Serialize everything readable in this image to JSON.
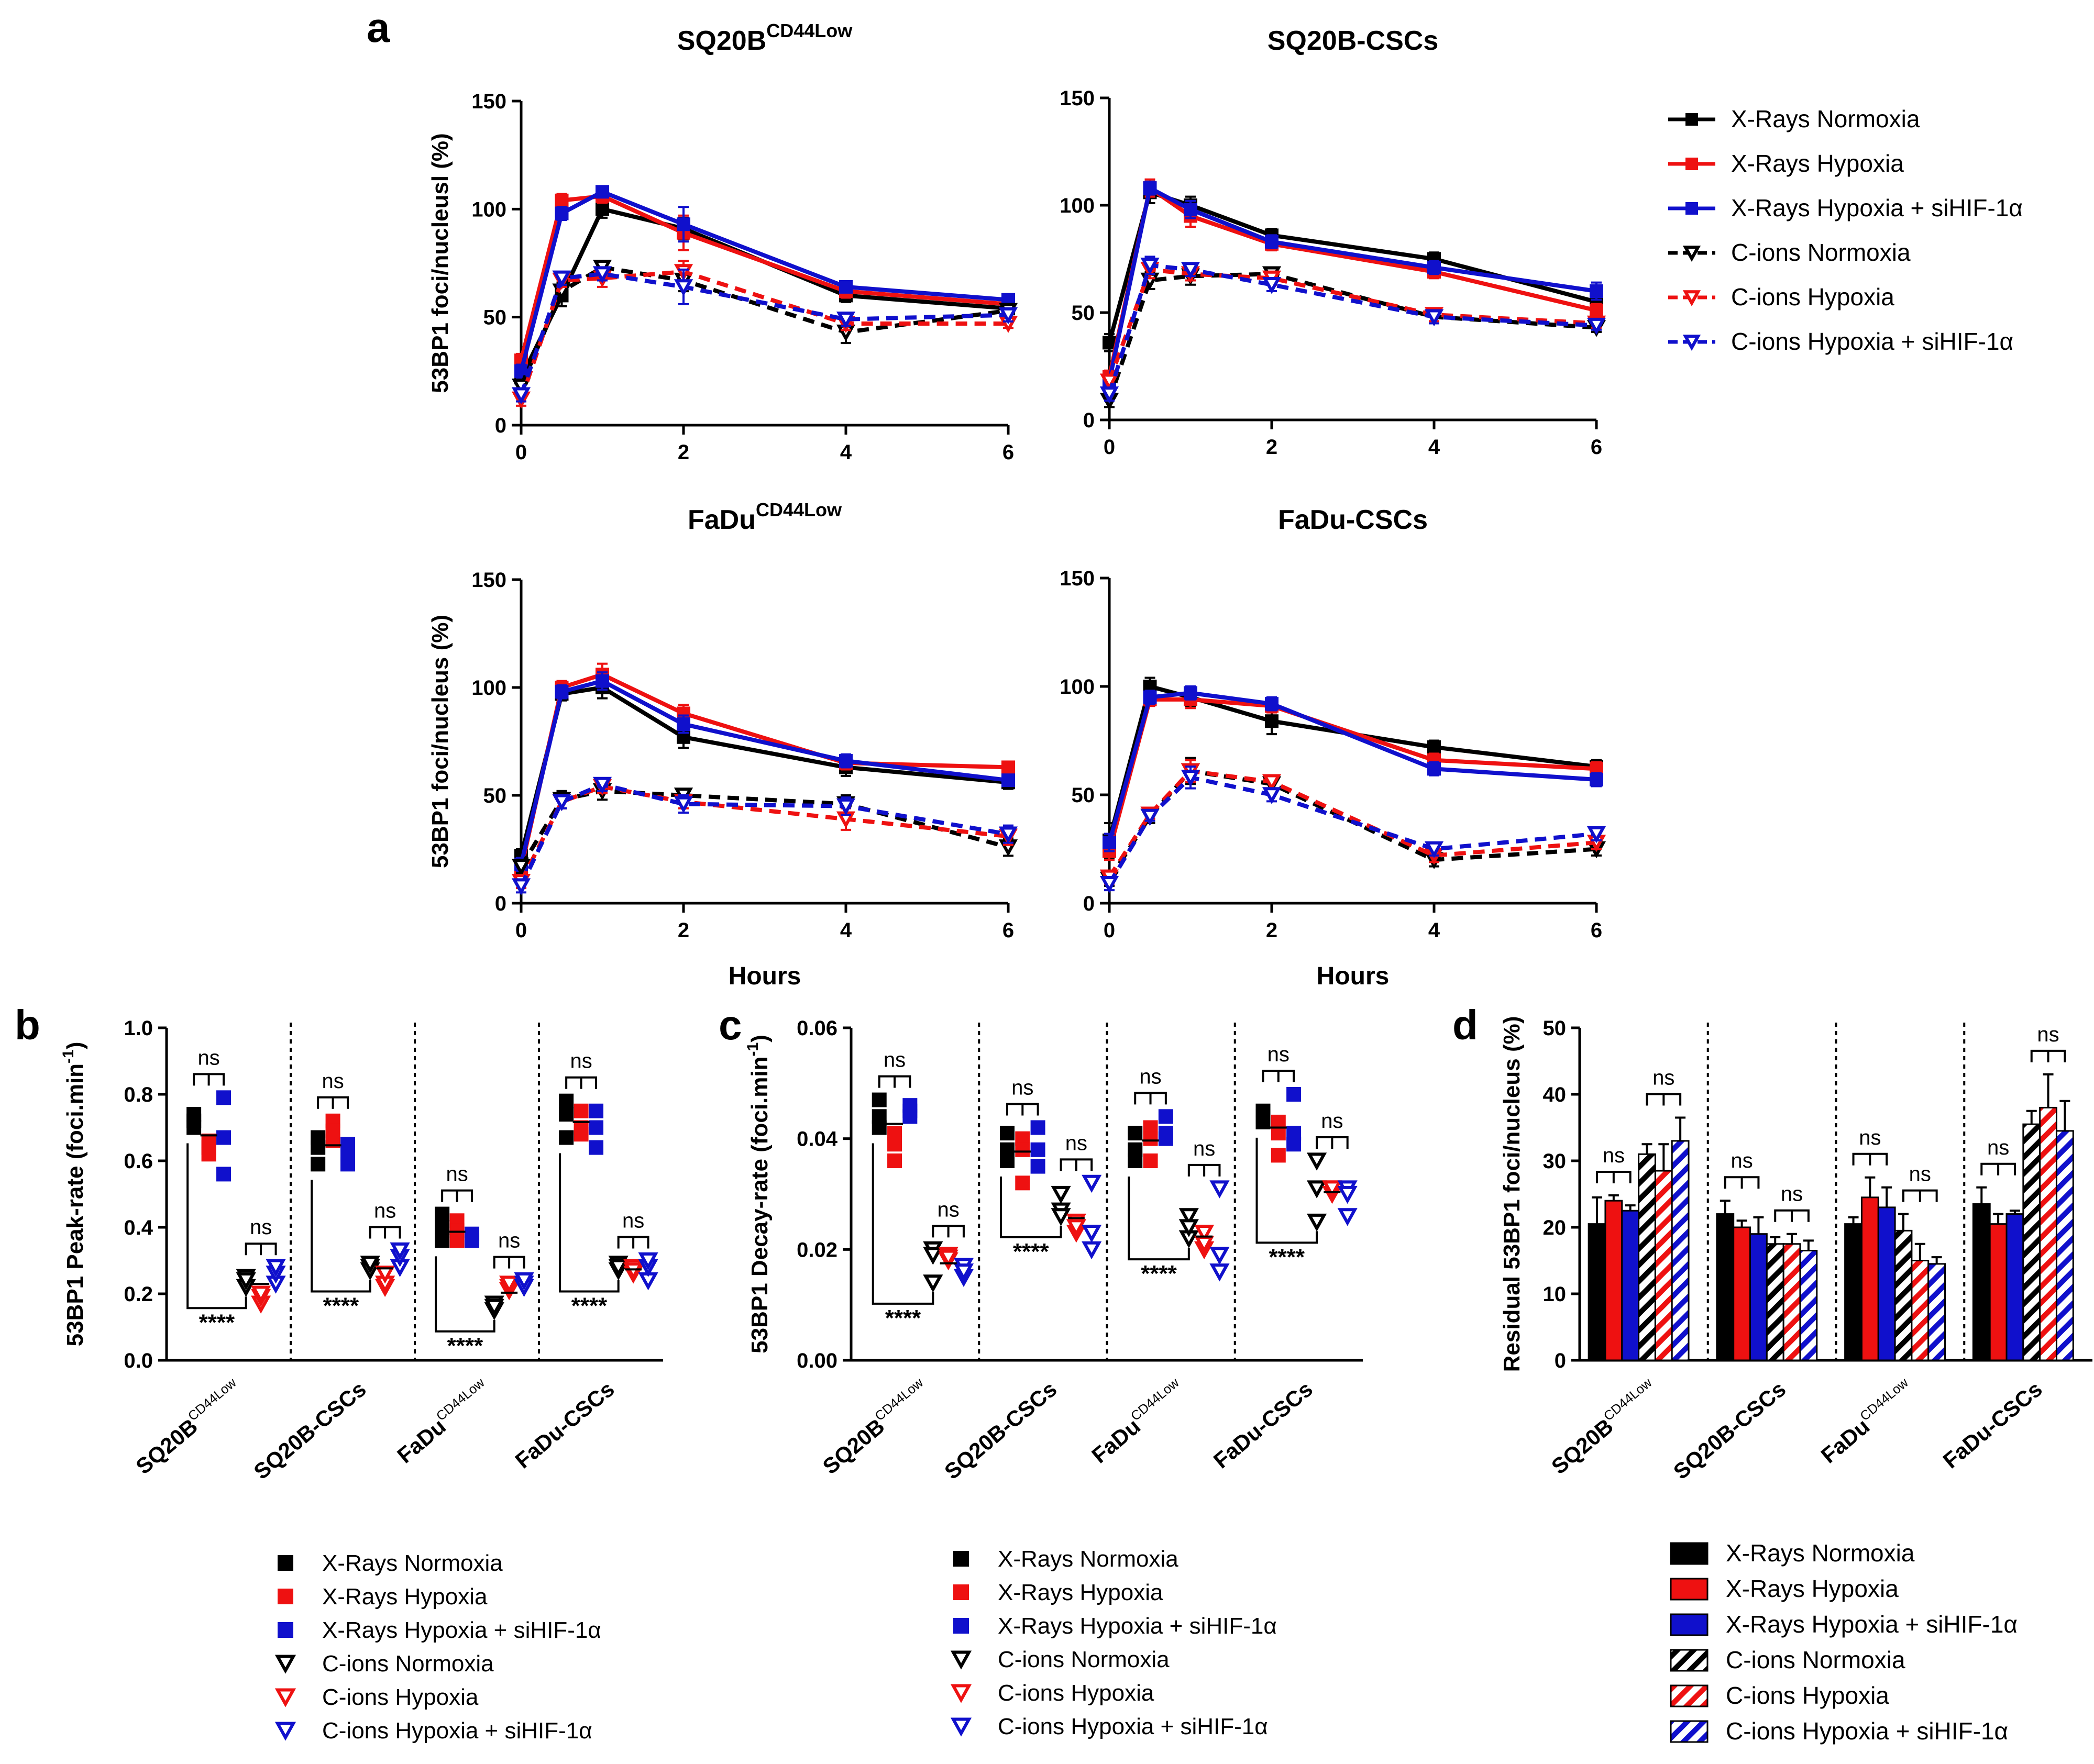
{
  "colors": {
    "xn": "#000000",
    "xh": "#ee1111",
    "xs": "#1010cc",
    "cn": "#000000",
    "ch": "#ee1111",
    "cs": "#1010cc"
  },
  "series_names": [
    "X-Rays Normoxia",
    "X-Rays Hypoxia",
    "X-Rays Hypoxia + siHIF-1α",
    "C-ions Normoxia",
    "C-ions Hypoxia",
    "C-ions Hypoxia + siHIF-1α"
  ],
  "panel_letters": {
    "a": "a",
    "b": "b",
    "c": "c",
    "d": "d"
  },
  "chart_data": [
    {
      "id": "a1",
      "type": "line",
      "title": "SQ20B",
      "title_sup": "CD44Low",
      "xlabel": "",
      "ylabel": "53BP1 foci/nucleusl (%)",
      "x": [
        0,
        0.5,
        1,
        2,
        4,
        6
      ],
      "xticks": [
        0,
        2,
        4,
        6
      ],
      "xlim": [
        0,
        6
      ],
      "ylim": [
        0,
        150
      ],
      "yticks": [
        0,
        50,
        100,
        150
      ],
      "series": [
        {
          "name": "X-Rays Normoxia",
          "values": [
            22,
            60,
            100,
            91,
            60,
            54
          ],
          "errors": [
            3,
            5,
            4,
            5,
            3,
            2
          ]
        },
        {
          "name": "X-Rays Hypoxia",
          "values": [
            30,
            104,
            106,
            89,
            62,
            56
          ],
          "errors": [
            3,
            3,
            3,
            8,
            3,
            2
          ]
        },
        {
          "name": "X-Rays Hypoxia + siHIF-1α",
          "values": [
            25,
            98,
            108,
            93,
            64,
            58
          ],
          "errors": [
            3,
            3,
            2,
            8,
            2,
            2
          ]
        },
        {
          "name": "C-ions Normoxia",
          "values": [
            18,
            62,
            73,
            67,
            43,
            53
          ],
          "errors": [
            3,
            4,
            3,
            5,
            5,
            3
          ]
        },
        {
          "name": "C-ions Hypoxia",
          "values": [
            12,
            67,
            68,
            71,
            47,
            47
          ],
          "errors": [
            3,
            3,
            4,
            5,
            3,
            2
          ]
        },
        {
          "name": "C-ions Hypoxia + siHIF-1α",
          "values": [
            14,
            68,
            70,
            64,
            49,
            51
          ],
          "errors": [
            3,
            3,
            3,
            8,
            3,
            3
          ]
        }
      ]
    },
    {
      "id": "a2",
      "type": "line",
      "title": "SQ20B-CSCs",
      "title_sup": "",
      "xlabel": "",
      "ylabel": "",
      "x": [
        0,
        0.5,
        1,
        2,
        4,
        6
      ],
      "xticks": [
        0,
        2,
        4,
        6
      ],
      "xlim": [
        0,
        6
      ],
      "ylim": [
        0,
        150
      ],
      "yticks": [
        0,
        50,
        100,
        150
      ],
      "series": [
        {
          "name": "X-Rays Normoxia",
          "values": [
            36,
            106,
            100,
            86,
            75,
            55
          ],
          "errors": [
            4,
            5,
            4,
            3,
            3,
            3
          ]
        },
        {
          "name": "X-Rays Hypoxia",
          "values": [
            20,
            108,
            95,
            82,
            69,
            51
          ],
          "errors": [
            3,
            4,
            5,
            3,
            3,
            3
          ]
        },
        {
          "name": "X-Rays Hypoxia + siHIF-1α",
          "values": [
            18,
            108,
            98,
            83,
            71,
            60
          ],
          "errors": [
            3,
            3,
            4,
            3,
            3,
            4
          ]
        },
        {
          "name": "C-ions Normoxia",
          "values": [
            9,
            65,
            67,
            68,
            48,
            43
          ],
          "errors": [
            3,
            4,
            4,
            3,
            3,
            2
          ]
        },
        {
          "name": "C-ions Hypoxia",
          "values": [
            18,
            70,
            68,
            66,
            49,
            45
          ],
          "errors": [
            3,
            4,
            3,
            3,
            3,
            2
          ]
        },
        {
          "name": "C-ions Hypoxia + siHIF-1α",
          "values": [
            12,
            72,
            70,
            63,
            48,
            44
          ],
          "errors": [
            3,
            4,
            3,
            3,
            3,
            2
          ]
        }
      ]
    },
    {
      "id": "a3",
      "type": "line",
      "title": "FaDu",
      "title_sup": "CD44Low",
      "xlabel": "Hours",
      "ylabel": "53BP1 foci/nucleus (%)",
      "x": [
        0,
        0.5,
        1,
        2,
        4,
        6
      ],
      "xticks": [
        0,
        2,
        4,
        6
      ],
      "xlim": [
        0,
        6
      ],
      "ylim": [
        0,
        150
      ],
      "yticks": [
        0,
        50,
        100,
        150
      ],
      "series": [
        {
          "name": "X-Rays Normoxia",
          "values": [
            22,
            97,
            100,
            77,
            63,
            56
          ],
          "errors": [
            3,
            3,
            5,
            5,
            4,
            3
          ]
        },
        {
          "name": "X-Rays Hypoxia",
          "values": [
            16,
            100,
            106,
            88,
            65,
            63
          ],
          "errors": [
            3,
            3,
            5,
            4,
            3,
            2
          ]
        },
        {
          "name": "X-Rays Hypoxia + siHIF-1α",
          "values": [
            18,
            98,
            103,
            83,
            66,
            57
          ],
          "errors": [
            3,
            3,
            4,
            4,
            3,
            2
          ]
        },
        {
          "name": "C-ions Normoxia",
          "values": [
            17,
            48,
            52,
            50,
            46,
            26
          ],
          "errors": [
            3,
            4,
            4,
            3,
            4,
            4
          ]
        },
        {
          "name": "C-ions Hypoxia",
          "values": [
            10,
            47,
            54,
            47,
            39,
            31
          ],
          "errors": [
            3,
            3,
            3,
            3,
            5,
            4
          ]
        },
        {
          "name": "C-ions Hypoxia + siHIF-1α",
          "values": [
            8,
            47,
            55,
            46,
            45,
            32
          ],
          "errors": [
            3,
            3,
            3,
            4,
            4,
            4
          ]
        }
      ]
    },
    {
      "id": "a4",
      "type": "line",
      "title": "FaDu-CSCs",
      "title_sup": "",
      "xlabel": "Hours",
      "ylabel": "",
      "x": [
        0,
        0.5,
        1,
        2,
        4,
        6
      ],
      "xticks": [
        0,
        2,
        4,
        6
      ],
      "xlim": [
        0,
        6
      ],
      "ylim": [
        0,
        150
      ],
      "yticks": [
        0,
        50,
        100,
        150
      ],
      "series": [
        {
          "name": "X-Rays Normoxia",
          "values": [
            29,
            100,
            95,
            84,
            72,
            63
          ],
          "errors": [
            8,
            4,
            4,
            6,
            3,
            3
          ]
        },
        {
          "name": "X-Rays Hypoxia",
          "values": [
            24,
            94,
            94,
            91,
            66,
            62
          ],
          "errors": [
            4,
            3,
            4,
            3,
            3,
            3
          ]
        },
        {
          "name": "X-Rays Hypoxia + siHIF-1α",
          "values": [
            28,
            95,
            97,
            92,
            62,
            57
          ],
          "errors": [
            4,
            3,
            3,
            3,
            3,
            3
          ]
        },
        {
          "name": "C-ions Normoxia",
          "values": [
            11,
            40,
            61,
            55,
            20,
            25
          ],
          "errors": [
            3,
            3,
            6,
            3,
            3,
            3
          ]
        },
        {
          "name": "C-ions Hypoxia",
          "values": [
            12,
            41,
            61,
            56,
            22,
            28
          ],
          "errors": [
            3,
            2,
            5,
            3,
            3,
            3
          ]
        },
        {
          "name": "C-ions Hypoxia + siHIF-1α",
          "values": [
            9,
            40,
            58,
            50,
            25,
            32
          ],
          "errors": [
            3,
            2,
            5,
            3,
            3,
            3
          ]
        }
      ]
    },
    {
      "id": "b",
      "type": "scatter",
      "ylabel": "53BP1 Peak-rate (foci.min",
      "ylabel_sup": "-1",
      "ylabel_end": ")",
      "ylim": [
        0,
        1.0
      ],
      "yticks": [
        0.0,
        0.2,
        0.4,
        0.6,
        0.8,
        1.0
      ],
      "ytick_labels": [
        "0.0",
        "0.2",
        "0.4",
        "0.6",
        "0.8",
        "1.0"
      ],
      "categories": [
        {
          "name": "SQ20B",
          "sup": "CD44Low"
        },
        {
          "name": "SQ20B-CSCs",
          "sup": ""
        },
        {
          "name": "FaDu",
          "sup": "CD44Low"
        },
        {
          "name": "FaDu-CSCs",
          "sup": ""
        }
      ],
      "groups": [
        {
          "xn": [
            0.74,
            0.7,
            0.72
          ],
          "xh": [
            0.62,
            0.66,
            0.64
          ],
          "xs": [
            0.79,
            0.56,
            0.67
          ],
          "cn": [
            0.25,
            0.22,
            0.24
          ],
          "ch": [
            0.17,
            0.19,
            0.2
          ],
          "cs": [
            0.23,
            0.26,
            0.28
          ],
          "xray_mean": [
            0.72,
            0.64,
            0.67
          ],
          "cion_mean": [
            0.24,
            0.19,
            0.26
          ]
        },
        {
          "xn": [
            0.59,
            0.64,
            0.67
          ],
          "xh": [
            0.72,
            0.66,
            0.69
          ],
          "xs": [
            0.59,
            0.62,
            0.65
          ],
          "cn": [
            0.28,
            0.27,
            0.29
          ],
          "ch": [
            0.22,
            0.23,
            0.26
          ],
          "cs": [
            0.28,
            0.31,
            0.33
          ],
          "xray_mean": [
            0.63,
            0.69,
            0.62
          ],
          "cion_mean": [
            0.28,
            0.24,
            0.31
          ]
        },
        {
          "xn": [
            0.44,
            0.4,
            0.36
          ],
          "xh": [
            0.42,
            0.36,
            0.39
          ],
          "xs": [
            0.36,
            0.38,
            0.37
          ],
          "cn": [
            0.17,
            0.15,
            0.16
          ],
          "ch": [
            0.21,
            0.22,
            0.23
          ],
          "cs": [
            0.23,
            0.22,
            0.24
          ],
          "xray_mean": [
            0.4,
            0.39,
            0.37
          ],
          "cion_mean": [
            0.16,
            0.22,
            0.23
          ]
        },
        {
          "xn": [
            0.78,
            0.67,
            0.74
          ],
          "xh": [
            0.7,
            0.75,
            0.68
          ],
          "xs": [
            0.75,
            0.64,
            0.7
          ],
          "cn": [
            0.27,
            0.29,
            0.28
          ],
          "ch": [
            0.26,
            0.28,
            0.27
          ],
          "cs": [
            0.24,
            0.28,
            0.3
          ],
          "xray_mean": [
            0.74,
            0.71,
            0.7
          ],
          "cion_mean": [
            0.28,
            0.27,
            0.27
          ]
        }
      ],
      "sig_labels": {
        "ns": "ns",
        "stars": "****"
      }
    },
    {
      "id": "c",
      "type": "scatter",
      "ylabel": "53BP1 Decay-rate (foci.min",
      "ylabel_sup": "-1",
      "ylabel_end": ")",
      "ylim": [
        0,
        0.06
      ],
      "yticks": [
        0.0,
        0.02,
        0.04,
        0.06
      ],
      "ytick_labels": [
        "0.00",
        "0.02",
        "0.04",
        "0.06"
      ],
      "categories": [
        {
          "name": "SQ20B",
          "sup": "CD44Low"
        },
        {
          "name": "SQ20B-CSCs",
          "sup": ""
        },
        {
          "name": "FaDu",
          "sup": "CD44Low"
        },
        {
          "name": "FaDu-CSCs",
          "sup": ""
        }
      ],
      "groups": [
        {
          "xn": [
            0.047,
            0.042,
            0.044
          ],
          "xh": [
            0.041,
            0.036,
            0.039
          ],
          "xs": [
            0.046,
            0.044,
            0.045
          ],
          "cn": [
            0.02,
            0.014,
            0.019
          ],
          "ch": [
            0.019,
            0.018,
            0.0185
          ],
          "cs": [
            0.017,
            0.015,
            0.016
          ],
          "xray_mean": [
            0.044,
            0.039,
            0.045
          ],
          "cion_mean": [
            0.018,
            0.0185,
            0.016
          ]
        },
        {
          "xn": [
            0.041,
            0.036,
            0.038
          ],
          "xh": [
            0.04,
            0.038,
            0.032
          ],
          "xs": [
            0.042,
            0.038,
            0.035
          ],
          "cn": [
            0.027,
            0.026,
            0.03
          ],
          "ch": [
            0.025,
            0.023,
            0.024
          ],
          "cs": [
            0.032,
            0.02,
            0.023
          ],
          "xray_mean": [
            0.038,
            0.037,
            0.038
          ],
          "cion_mean": [
            0.028,
            0.024,
            0.025
          ]
        },
        {
          "xn": [
            0.041,
            0.036,
            0.038
          ],
          "xh": [
            0.042,
            0.036,
            0.04
          ],
          "xs": [
            0.044,
            0.041,
            0.04
          ],
          "cn": [
            0.026,
            0.022,
            0.024
          ],
          "ch": [
            0.023,
            0.02,
            0.021
          ],
          "cs": [
            0.031,
            0.019,
            0.016
          ],
          "xray_mean": [
            0.038,
            0.039,
            0.042
          ],
          "cion_mean": [
            0.024,
            0.021,
            0.022
          ]
        },
        {
          "xn": [
            0.044,
            0.043,
            0.045
          ],
          "xh": [
            0.043,
            0.037,
            0.041
          ],
          "xs": [
            0.048,
            0.039,
            0.041
          ],
          "cn": [
            0.036,
            0.025,
            0.031
          ],
          "ch": [
            0.031,
            0.03,
            0.031
          ],
          "cs": [
            0.031,
            0.026,
            0.03
          ],
          "xray_mean": [
            0.044,
            0.04,
            0.042
          ],
          "cion_mean": [
            0.031,
            0.031,
            0.029
          ]
        }
      ],
      "sig_labels": {
        "ns": "ns",
        "stars": "****"
      }
    },
    {
      "id": "d",
      "type": "bar",
      "ylabel": "Residual 53BP1 foci/nucleus (%)",
      "ylim": [
        0,
        50
      ],
      "yticks": [
        0,
        10,
        20,
        30,
        40,
        50
      ],
      "ytick_labels": [
        "0",
        "10",
        "20",
        "30",
        "40",
        "50"
      ],
      "categories": [
        {
          "name": "SQ20B",
          "sup": "CD44Low"
        },
        {
          "name": "SQ20B-CSCs",
          "sup": ""
        },
        {
          "name": "FaDu",
          "sup": "CD44Low"
        },
        {
          "name": "FaDu-CSCs",
          "sup": ""
        }
      ],
      "series": [
        {
          "name": "X-Rays Normoxia",
          "values": [
            20.5,
            22,
            20.5,
            23.5
          ],
          "errors": [
            4,
            2,
            1,
            2.5
          ]
        },
        {
          "name": "X-Rays Hypoxia",
          "values": [
            24,
            20,
            24.5,
            20.5
          ],
          "errors": [
            0.8,
            1,
            3,
            1.5
          ]
        },
        {
          "name": "X-Rays Hypoxia + siHIF-1α",
          "values": [
            22.5,
            19,
            23,
            22
          ],
          "errors": [
            0.8,
            2.5,
            3,
            0.5
          ]
        },
        {
          "name": "C-ions Normoxia",
          "values": [
            31,
            17.5,
            19.5,
            35.5
          ],
          "errors": [
            1.5,
            1,
            2.5,
            2
          ]
        },
        {
          "name": "C-ions Hypoxia",
          "values": [
            28.5,
            17.5,
            15,
            38
          ],
          "errors": [
            4,
            1.5,
            2.5,
            5
          ]
        },
        {
          "name": "C-ions Hypoxia + siHIF-1α",
          "values": [
            33,
            16.5,
            14.5,
            34.5
          ],
          "errors": [
            3.5,
            1.5,
            1,
            4.5
          ]
        }
      ],
      "sig_labels": {
        "ns": "ns"
      }
    }
  ]
}
